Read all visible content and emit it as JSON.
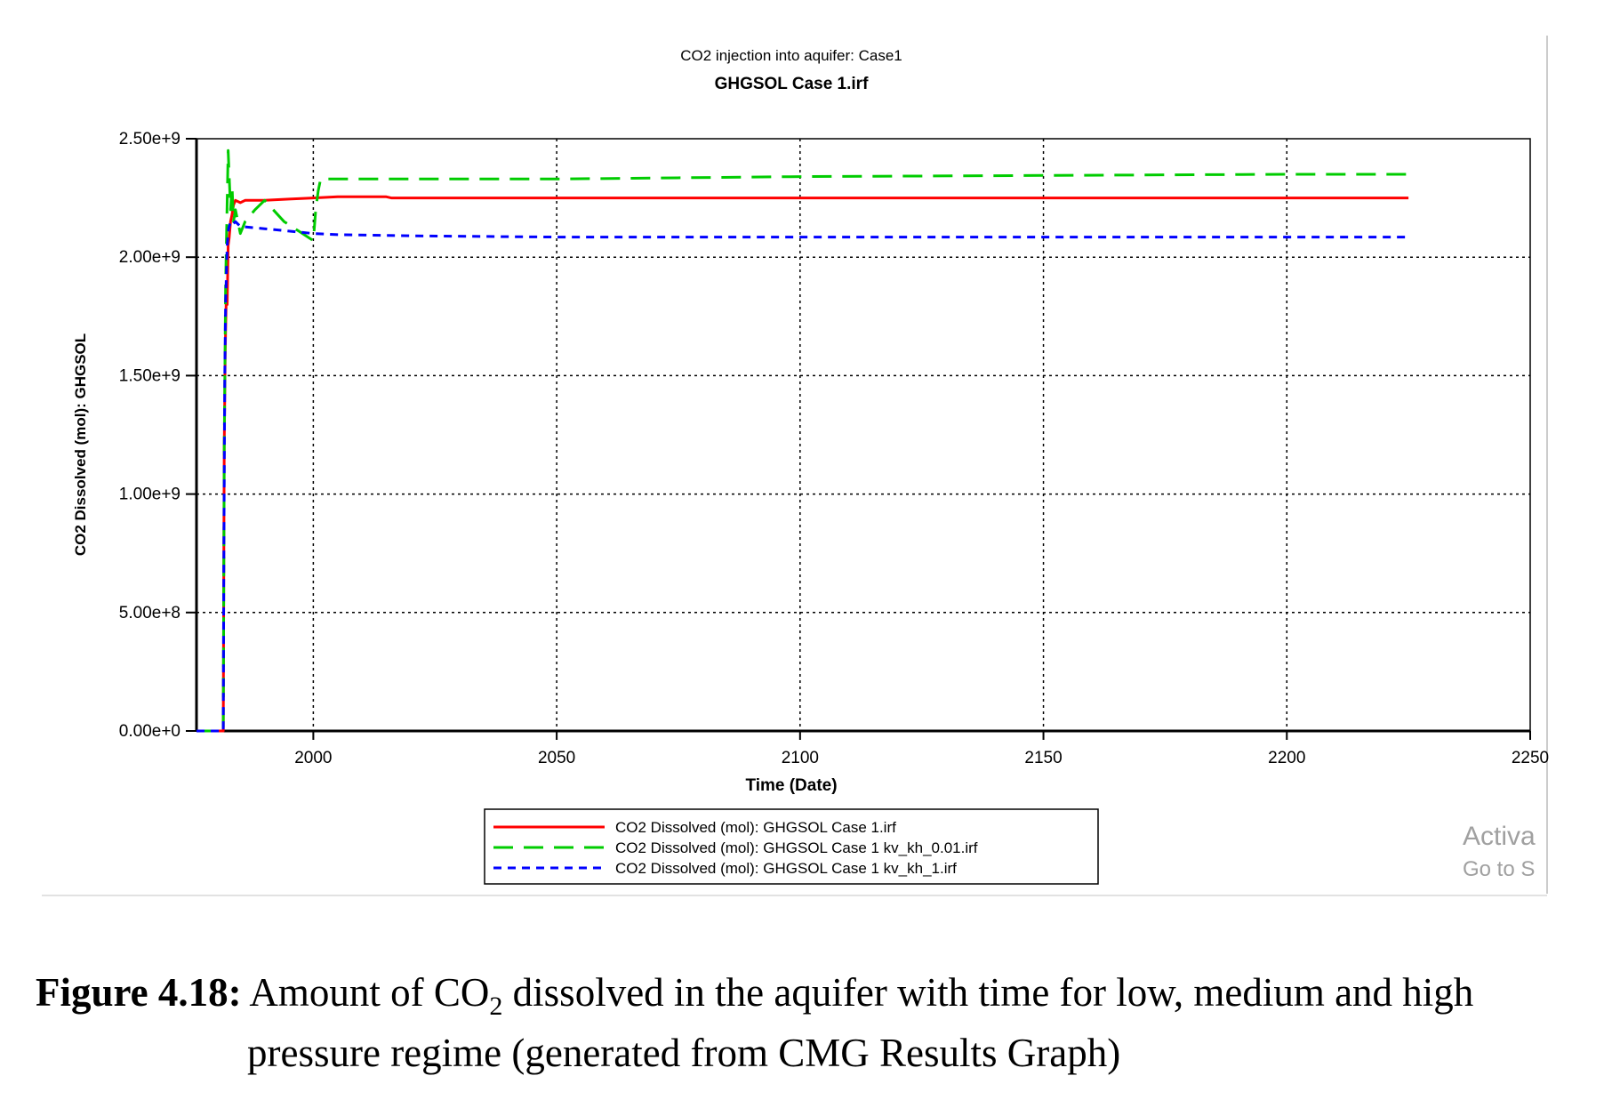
{
  "chart_data": {
    "type": "line",
    "title": "CO2 injection into aquifer: Case1",
    "subtitle": "GHGSOL Case 1.irf",
    "xlabel": "Time (Date)",
    "ylabel": "CO2 Dissolved (mol): GHGSOL",
    "xlim": [
      1976,
      2250
    ],
    "ylim": [
      0,
      2500000000
    ],
    "x_ticks": [
      2000,
      2050,
      2100,
      2150,
      2200,
      2250
    ],
    "x_tick_labels": [
      "2000",
      "2050",
      "2100",
      "2150",
      "2200",
      "2250"
    ],
    "y_ticks": [
      0,
      500000000,
      1000000000,
      1500000000,
      2000000000,
      2500000000
    ],
    "y_tick_labels": [
      "0.00e+0",
      "5.00e+8",
      "1.00e+9",
      "1.50e+9",
      "2.00e+9",
      "2.50e+9"
    ],
    "grid": true,
    "legend_position": "bottom-center",
    "series": [
      {
        "name": "CO2 Dissolved (mol): GHGSOL Case 1.irf",
        "color": "#ff0000",
        "dash": "solid",
        "x": [
          1976,
          1981.5,
          1981.6,
          1981.7,
          1981.9,
          1982.1,
          1982.3,
          1982.5,
          1982.7,
          1983.0,
          1983.3,
          1983.6,
          1984.0,
          1985,
          1986,
          1990,
          1995,
          2000,
          2005,
          2015,
          2016,
          2050,
          2100,
          2150,
          2200,
          2225
        ],
        "y": [
          0,
          0,
          700000000,
          1200000000,
          1600000000,
          1820000000,
          1800000000,
          2050000000,
          2080000000,
          2150000000,
          2180000000,
          2220000000,
          2240000000,
          2230000000,
          2240000000,
          2240000000,
          2245000000,
          2250000000,
          2255000000,
          2255000000,
          2250000000,
          2250000000,
          2250000000,
          2250000000,
          2250000000,
          2250000000
        ]
      },
      {
        "name": "CO2 Dissolved (mol): GHGSOL Case 1 kv_kh_0.01.irf",
        "color": "#00cc00",
        "dash": "long-dash",
        "x": [
          1976,
          1981.5,
          1981.7,
          1982.0,
          1982.5,
          1983.0,
          1983.3,
          1983.6,
          1984.0,
          1985,
          1986,
          1988,
          1990,
          1994,
          1997,
          2000,
          2000.5,
          2001,
          2001.5,
          2020,
          2050,
          2100,
          2150,
          2200,
          2225
        ],
        "y": [
          0,
          0,
          1200000000,
          1900000000,
          2450000000,
          2200000000,
          2300000000,
          2150000000,
          2200000000,
          2100000000,
          2150000000,
          2200000000,
          2240000000,
          2150000000,
          2110000000,
          2070000000,
          2200000000,
          2280000000,
          2330000000,
          2330000000,
          2330000000,
          2340000000,
          2345000000,
          2350000000,
          2350000000
        ]
      },
      {
        "name": "CO2 Dissolved (mol): GHGSOL Case 1 kv_kh_1.irf",
        "color": "#0000ff",
        "dash": "short-dash",
        "x": [
          1976,
          1981.5,
          1981.6,
          1981.8,
          1982.0,
          1982.3,
          1982.6,
          1983.0,
          1983.5,
          1984,
          1985,
          1990,
          1995,
          2000,
          2005,
          2020,
          2050,
          2100,
          2150,
          2200,
          2225
        ],
        "y": [
          0,
          0,
          700000000,
          1500000000,
          1820000000,
          2050000000,
          2120000000,
          2150000000,
          2140000000,
          2150000000,
          2130000000,
          2120000000,
          2110000000,
          2100000000,
          2095000000,
          2090000000,
          2085000000,
          2085000000,
          2085000000,
          2085000000,
          2085000000
        ]
      }
    ]
  },
  "watermark": {
    "line1": "Activa",
    "line2": "Go to S"
  },
  "caption": {
    "label": "Figure 4.18:",
    "text_line1": "Amount of CO",
    "subscript": "2",
    "text_line1_rest": "dissolved in the aquifer with time for low, medium and high",
    "text_line2": "pressure regime (generated from CMG Results Graph)"
  }
}
